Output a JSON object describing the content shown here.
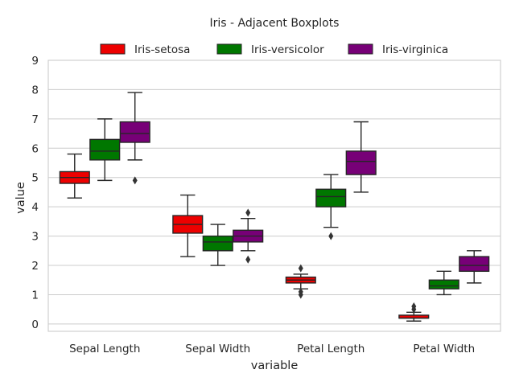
{
  "chart_data": {
    "type": "boxplot",
    "title": "Iris - Adjacent Boxplots",
    "xlabel": "variable",
    "ylabel": "value",
    "ylim": [
      0,
      9
    ],
    "yticks": [
      0,
      1,
      2,
      3,
      4,
      5,
      6,
      7,
      8,
      9
    ],
    "grid": "horizontal",
    "legend_position": "top-center",
    "categories": [
      "Sepal Length",
      "Sepal Width",
      "Petal Length",
      "Petal Width"
    ],
    "series": [
      {
        "name": "Iris-setosa",
        "color": "#ff0000",
        "boxes": [
          {
            "whislo": 4.3,
            "q1": 4.8,
            "med": 5.0,
            "q3": 5.2,
            "whishi": 5.8,
            "fliers": []
          },
          {
            "whislo": 2.3,
            "q1": 3.1,
            "med": 3.4,
            "q3": 3.7,
            "whishi": 4.4,
            "fliers": []
          },
          {
            "whislo": 1.2,
            "q1": 1.4,
            "med": 1.5,
            "q3": 1.6,
            "whishi": 1.7,
            "fliers": [
              1.0,
              1.1,
              1.9
            ]
          },
          {
            "whislo": 0.1,
            "q1": 0.2,
            "med": 0.2,
            "q3": 0.3,
            "whishi": 0.4,
            "fliers": [
              0.5,
              0.6
            ]
          }
        ]
      },
      {
        "name": "Iris-versicolor",
        "color": "#008000",
        "boxes": [
          {
            "whislo": 4.9,
            "q1": 5.6,
            "med": 5.9,
            "q3": 6.3,
            "whishi": 7.0,
            "fliers": []
          },
          {
            "whislo": 2.0,
            "q1": 2.5,
            "med": 2.8,
            "q3": 3.0,
            "whishi": 3.4,
            "fliers": []
          },
          {
            "whislo": 3.3,
            "q1": 4.0,
            "med": 4.35,
            "q3": 4.6,
            "whishi": 5.1,
            "fliers": [
              3.0
            ]
          },
          {
            "whislo": 1.0,
            "q1": 1.2,
            "med": 1.3,
            "q3": 1.5,
            "whishi": 1.8,
            "fliers": []
          }
        ]
      },
      {
        "name": "Iris-virginica",
        "color": "#800080",
        "boxes": [
          {
            "whislo": 5.6,
            "q1": 6.2,
            "med": 6.5,
            "q3": 6.9,
            "whishi": 7.9,
            "fliers": [
              4.9
            ]
          },
          {
            "whislo": 2.5,
            "q1": 2.8,
            "med": 3.0,
            "q3": 3.2,
            "whishi": 3.6,
            "fliers": [
              2.2,
              3.8
            ]
          },
          {
            "whislo": 4.5,
            "q1": 5.1,
            "med": 5.55,
            "q3": 5.9,
            "whishi": 6.9,
            "fliers": []
          },
          {
            "whislo": 1.4,
            "q1": 1.8,
            "med": 2.0,
            "q3": 2.3,
            "whishi": 2.5,
            "fliers": []
          }
        ]
      }
    ]
  }
}
